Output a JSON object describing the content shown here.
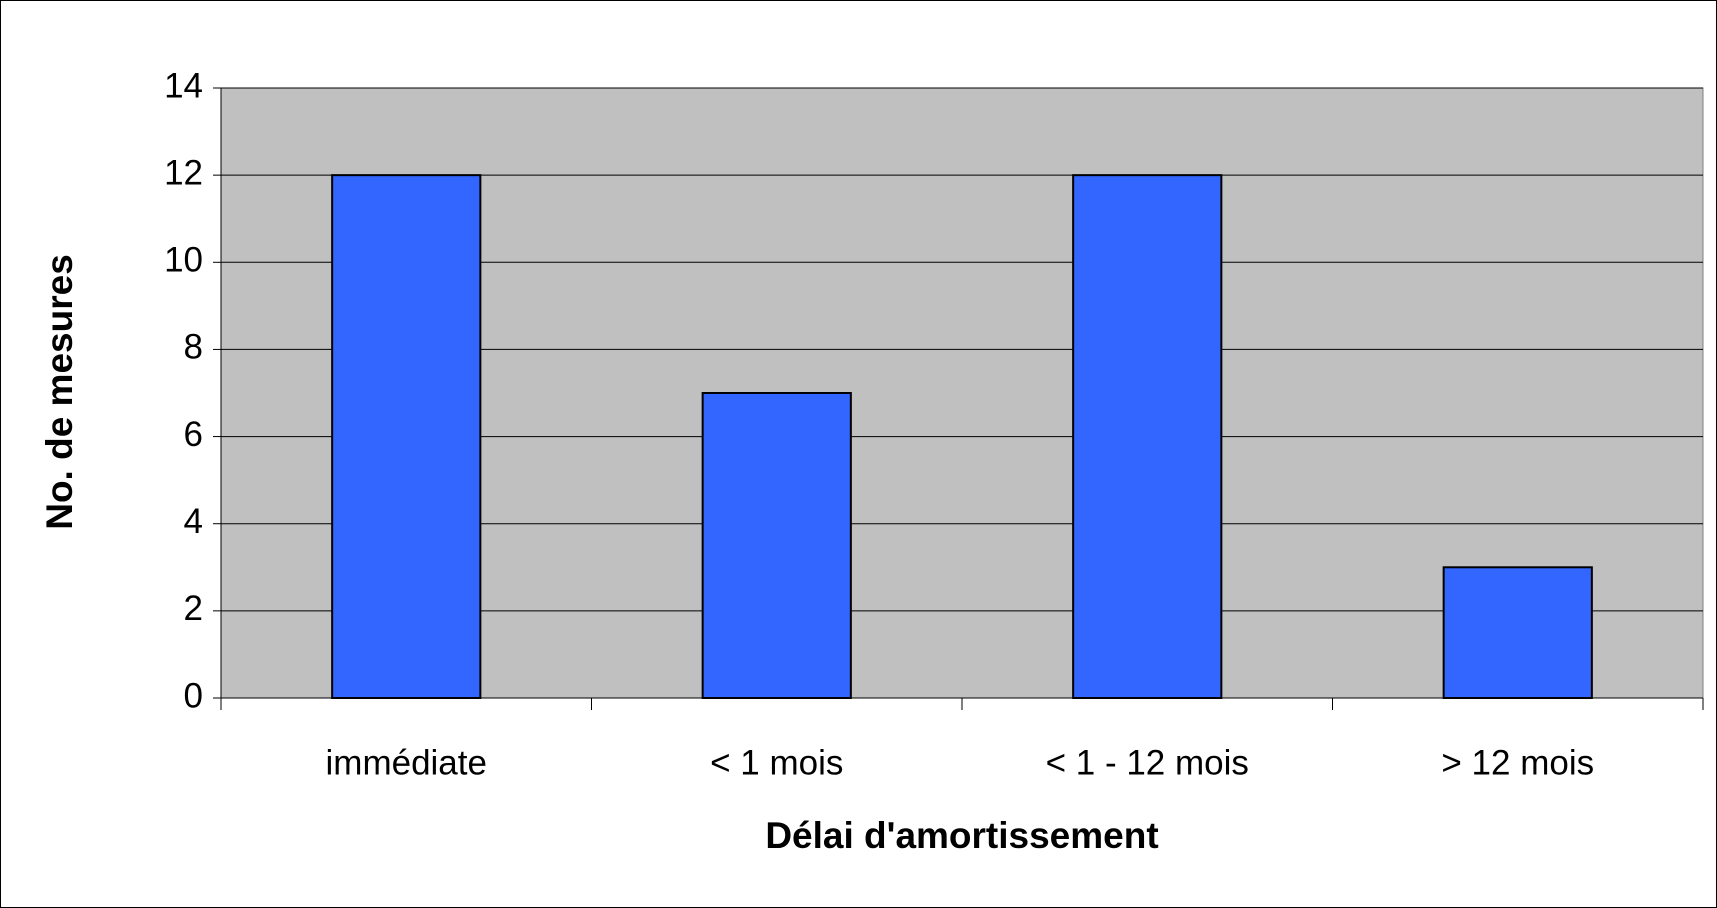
{
  "chart_data": {
    "type": "bar",
    "categories": [
      "immédiate",
      "< 1 mois",
      "< 1 - 12 mois",
      "> 12 mois"
    ],
    "values": [
      12,
      7,
      12,
      3
    ],
    "color": "#3366ff",
    "xlabel": "Délai d'amortissement",
    "ylabel": "No. de mesures",
    "ylim": [
      0,
      14
    ],
    "yticks": [
      0,
      2,
      4,
      6,
      8,
      10,
      12,
      14
    ],
    "grid": true
  }
}
